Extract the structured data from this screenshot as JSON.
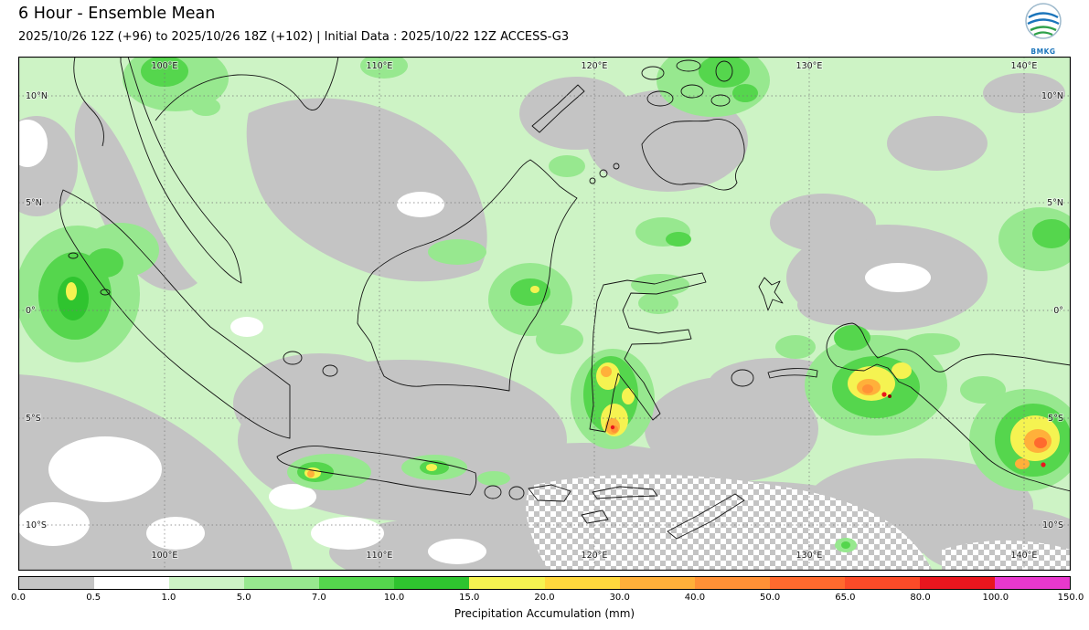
{
  "header": {
    "title": "6 Hour - Ensemble Mean",
    "subtitle": "2025/10/26 12Z (+96) to 2025/10/26 18Z (+102) | Initial Data : 2025/10/22 12Z ACCESS-G3"
  },
  "logo": {
    "text": "BMKG"
  },
  "chart_data": {
    "type": "heatmap",
    "title": "6 Hour - Ensemble Mean",
    "product": "Precipitation Accumulation",
    "units": "mm",
    "valid_from": "2025/10/26 12Z (+96)",
    "valid_to": "2025/10/26 18Z (+102)",
    "initial_data": "2025/10/22 12Z",
    "model": "ACCESS-G3",
    "lon_ticks": [
      "100°E",
      "110°E",
      "120°E",
      "130°E",
      "140°E"
    ],
    "lat_ticks": [
      "10°N",
      "5°N",
      "0°",
      "5°S",
      "10°S"
    ],
    "colorbar": {
      "label": "Precipitation Accumulation (mm)",
      "boundaries": [
        0.0,
        0.5,
        1.0,
        5.0,
        7.0,
        10.0,
        15.0,
        20.0,
        30.0,
        40.0,
        50.0,
        65.0,
        80.0,
        100.0,
        150.0
      ],
      "tick_labels": [
        "0.0",
        "0.5",
        "1.0",
        "5.0",
        "7.0",
        "10.0",
        "15.0",
        "20.0",
        "30.0",
        "40.0",
        "50.0",
        "65.0",
        "80.0",
        "100.0",
        "150.0"
      ],
      "colors": [
        "#c4c4c4",
        "#ffffff",
        "#cdf3c5",
        "#97e88f",
        "#55d64d",
        "#2fc42f",
        "#f5f351",
        "#ffd83d",
        "#ffb03a",
        "#ff9136",
        "#ff6a2e",
        "#fb4b28",
        "#e9161e",
        "#e838cd"
      ]
    }
  }
}
